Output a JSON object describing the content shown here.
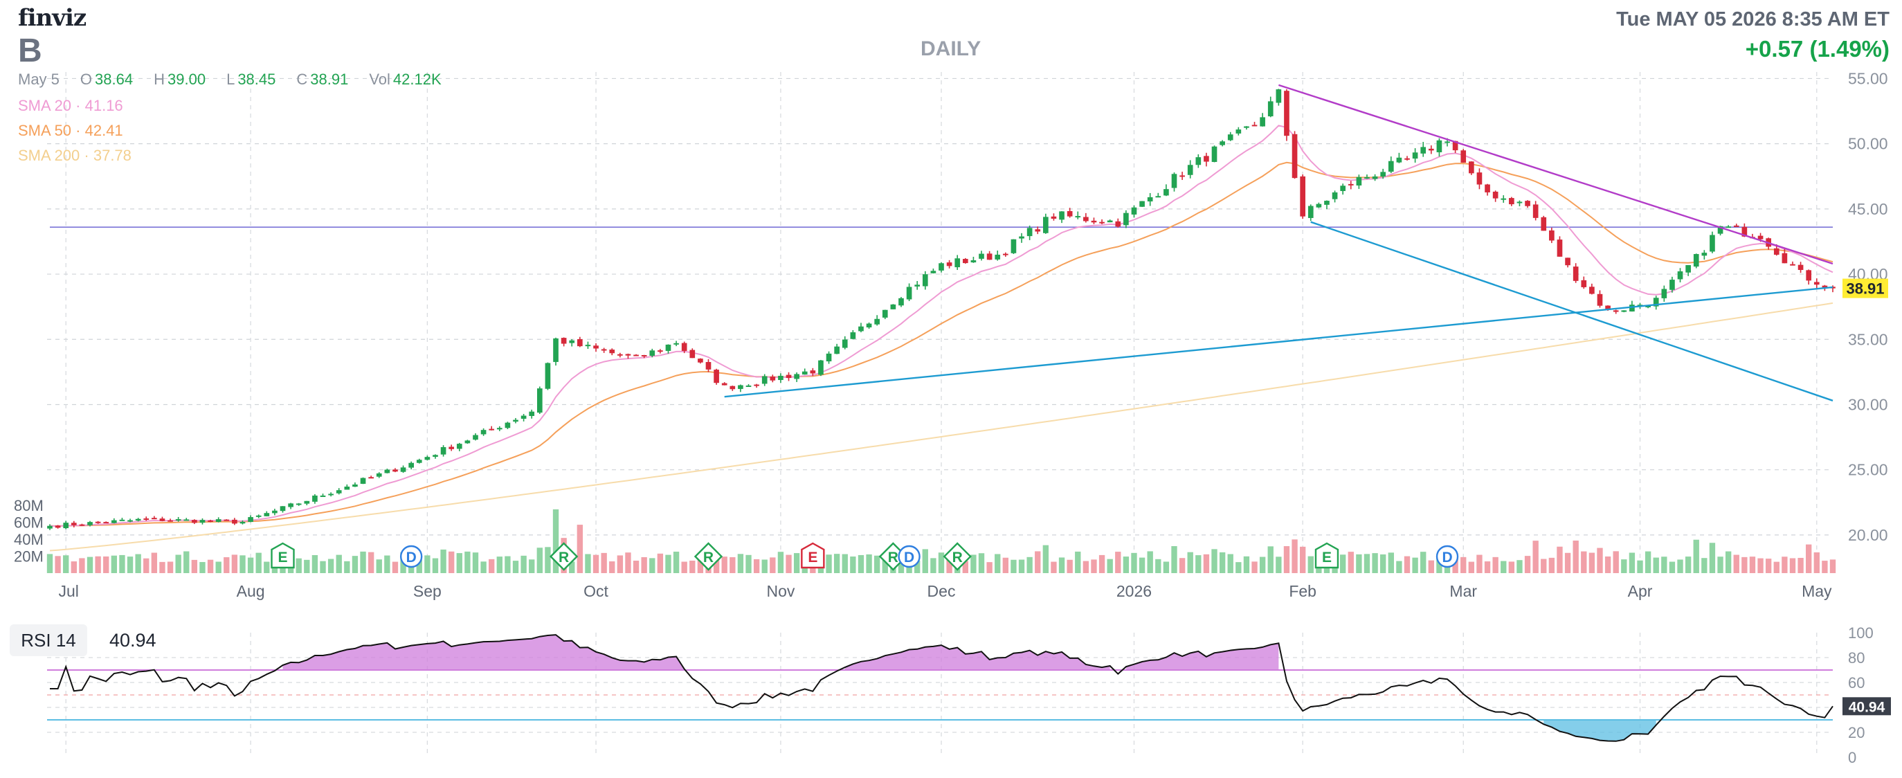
{
  "header": {
    "logo": "finviz",
    "ticker": "B",
    "datetime": "Tue MAY 05 2026 8:35 AM ET",
    "change": "+0.57 (1.49%)",
    "period": "DAILY",
    "date_label": "May 5",
    "open_label": "O",
    "open": "38.64",
    "high_label": "H",
    "high": "39.00",
    "low_label": "L",
    "low": "38.45",
    "close_label": "C",
    "close": "38.91",
    "vol_label": "Vol",
    "vol": "42.12K",
    "sma20_label": "SMA 20",
    "sma20_value": "41.16",
    "sma50_label": "SMA 50",
    "sma50_value": "42.41",
    "sma200_label": "SMA 200",
    "sma200_value": "37.78",
    "rsi_label": "RSI 14",
    "rsi_value": "40.94"
  },
  "colors": {
    "up": "#22a352",
    "down": "#d6293a",
    "vol_up": "#8fd4a3",
    "vol_down": "#f1a0a8",
    "sma20": "#ef9bd3",
    "sma50": "#f5a05a",
    "sma200": "#f7dcab",
    "trend_purple": "#b23cc8",
    "trend_blue": "#1d9bd1",
    "hline": "#7b74d8",
    "rsi_line": "#111111",
    "rsi_ob": "#cf7ddc",
    "rsi_os": "#5bbde3",
    "price_tag": "#ffec33"
  },
  "chart_data": [
    {
      "type": "candlestick",
      "title": "",
      "x_labels": [
        "Jul",
        "Aug",
        "Sep",
        "Oct",
        "Nov",
        "Dec",
        "2026",
        "Feb",
        "Mar",
        "Apr",
        "May"
      ],
      "y_ticks": [
        "55.00",
        "50.00",
        "45.00",
        "40.00",
        "35.00",
        "30.00",
        "25.00",
        "20.00"
      ],
      "ylim": [
        17.5,
        55.5
      ],
      "last_price": "38.91",
      "horizontal_line": 43.6,
      "anchor_points": [
        [
          "2025-06-27",
          20.7
        ],
        [
          "2025-07-15",
          21.2
        ],
        [
          "2025-07-31",
          21.0
        ],
        [
          "2025-08-15",
          23.3
        ],
        [
          "2025-08-29",
          25.5
        ],
        [
          "2025-09-12",
          28.1
        ],
        [
          "2025-09-19",
          29.5
        ],
        [
          "2025-09-24",
          35.0
        ],
        [
          "2025-09-29",
          34.5
        ],
        [
          "2025-10-08",
          33.5
        ],
        [
          "2025-10-15",
          34.8
        ],
        [
          "2025-10-23",
          31.3
        ],
        [
          "2025-11-07",
          32.6
        ],
        [
          "2025-11-24",
          38.5
        ],
        [
          "2025-12-01",
          40.7
        ],
        [
          "2025-12-10",
          41.5
        ],
        [
          "2025-12-19",
          44.5
        ],
        [
          "2025-12-31",
          44.0
        ],
        [
          "2026-01-12",
          47.8
        ],
        [
          "2026-01-23",
          51.5
        ],
        [
          "2026-01-28",
          53.8
        ],
        [
          "2026-02-02",
          44.5
        ],
        [
          "2026-02-10",
          47.0
        ],
        [
          "2026-02-20",
          49.0
        ],
        [
          "2026-02-26",
          50.5
        ],
        [
          "2026-03-04",
          46.5
        ],
        [
          "2026-03-12",
          45.2
        ],
        [
          "2026-03-19",
          40.5
        ],
        [
          "2026-03-26",
          37.1
        ],
        [
          "2026-04-03",
          38.0
        ],
        [
          "2026-04-10",
          41.2
        ],
        [
          "2026-04-15",
          43.6
        ],
        [
          "2026-04-22",
          43.0
        ],
        [
          "2026-04-29",
          40.0
        ],
        [
          "2026-05-05",
          38.91
        ]
      ],
      "trendlines": [
        {
          "color": "trend_purple",
          "from": [
            "2026-01-28",
            54.5
          ],
          "to": [
            "2026-05-05",
            40.8
          ]
        },
        {
          "color": "trend_blue",
          "from": [
            "2026-02-03",
            44.0
          ],
          "to": [
            "2026-05-05",
            30.3
          ]
        },
        {
          "color": "trend_blue",
          "from": [
            "2025-10-23",
            30.6
          ],
          "to": [
            "2026-05-05",
            39.0
          ]
        }
      ],
      "events": [
        {
          "date": "2025-08-07",
          "label": "E",
          "kind": "earnings"
        },
        {
          "date": "2025-08-29",
          "label": "D",
          "kind": "dividend"
        },
        {
          "date": "2025-09-25",
          "label": "R",
          "kind": "rating"
        },
        {
          "date": "2025-10-21",
          "label": "R",
          "kind": "rating"
        },
        {
          "date": "2025-11-07",
          "label": "E",
          "kind": "earnings_neg"
        },
        {
          "date": "2025-11-21",
          "label": "R",
          "kind": "rating"
        },
        {
          "date": "2025-11-25",
          "label": "D",
          "kind": "dividend"
        },
        {
          "date": "2025-12-03",
          "label": "R",
          "kind": "rating"
        },
        {
          "date": "2026-02-05",
          "label": "E",
          "kind": "earnings"
        },
        {
          "date": "2026-02-26",
          "label": "D",
          "kind": "dividend"
        }
      ]
    },
    {
      "type": "bar",
      "title": "Volume",
      "y_ticks": [
        "80M",
        "60M",
        "40M",
        "20M"
      ],
      "ylim": [
        0,
        90
      ]
    },
    {
      "type": "line",
      "title": "RSI 14",
      "y_ticks": [
        "100",
        "80",
        "60",
        "40",
        "20",
        "0"
      ],
      "ylim": [
        0,
        100
      ],
      "overbought": 70,
      "oversold": 30,
      "last_value": "40.94"
    }
  ]
}
